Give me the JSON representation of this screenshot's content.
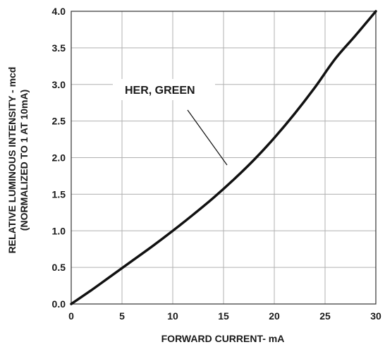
{
  "chart_data": {
    "type": "line",
    "xlabel": "FORWARD CURRENT- mA",
    "ylabel_line1": "RELATIVE LUMINOUS INTENSITY - mcd",
    "ylabel_line2": "(NORMALIZED TO 1 AT 10mA)",
    "xlim": [
      0,
      30
    ],
    "ylim": [
      0,
      4.0
    ],
    "xticks": [
      "0",
      "5",
      "10",
      "15",
      "20",
      "25",
      "30"
    ],
    "yticks": [
      "0.0",
      "0.5",
      "1.0",
      "1.5",
      "2.0",
      "2.5",
      "3.0",
      "3.5",
      "4.0"
    ],
    "grid": true,
    "series": [
      {
        "name": "HER, GREEN",
        "x": [
          0,
          2,
          4,
          6,
          8,
          10,
          12,
          14,
          16,
          18,
          20,
          22,
          24,
          26,
          28,
          30
        ],
        "y": [
          0,
          0.19,
          0.39,
          0.59,
          0.79,
          1.0,
          1.22,
          1.45,
          1.7,
          1.97,
          2.27,
          2.6,
          2.96,
          3.35,
          3.67,
          4.0
        ]
      }
    ],
    "annotation": "HER, GREEN",
    "colors": {
      "line": "#111111",
      "grid": "#b0b0b0",
      "axis": "#333333",
      "text": "#1a1a1a"
    }
  }
}
